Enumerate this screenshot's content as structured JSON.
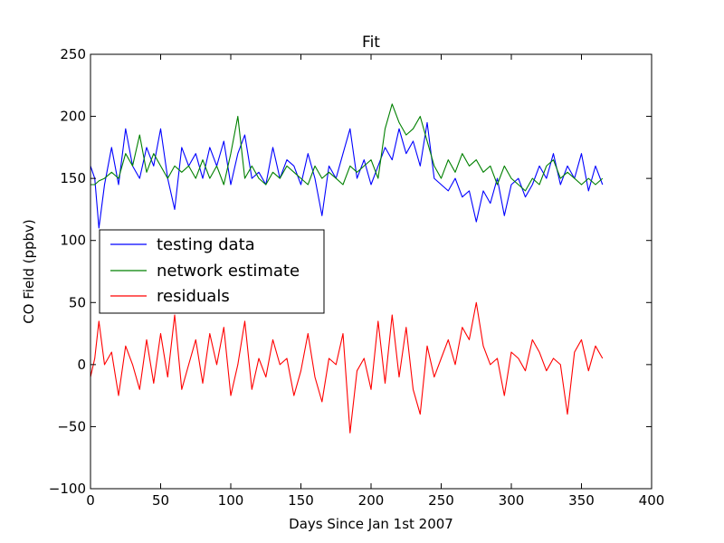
{
  "chart_data": {
    "type": "line",
    "title": "Fit",
    "xlabel": "Days Since Jan 1st 2007",
    "ylabel": "CO Field (ppbv)",
    "xlim": [
      0,
      400
    ],
    "ylim": [
      -100,
      250
    ],
    "xticks": [
      0,
      50,
      100,
      150,
      200,
      250,
      300,
      350,
      400
    ],
    "yticks": [
      -100,
      -50,
      0,
      50,
      100,
      150,
      200,
      250
    ],
    "xtick_labels": [
      "0",
      "50",
      "100",
      "150",
      "200",
      "250",
      "300",
      "350",
      "400"
    ],
    "ytick_labels": [
      "−100",
      "−50",
      "0",
      "50",
      "100",
      "150",
      "200",
      "250"
    ],
    "grid": false,
    "legend_position": "center-left",
    "series": [
      {
        "name": "testing data",
        "color": "#0000ff",
        "x": [
          0,
          3,
          6,
          10,
          15,
          20,
          25,
          30,
          35,
          40,
          45,
          50,
          55,
          60,
          65,
          70,
          75,
          80,
          85,
          90,
          95,
          100,
          105,
          110,
          115,
          120,
          125,
          130,
          135,
          140,
          145,
          150,
          155,
          160,
          165,
          170,
          175,
          180,
          185,
          190,
          195,
          200,
          205,
          210,
          215,
          220,
          225,
          230,
          235,
          240,
          245,
          250,
          255,
          260,
          265,
          270,
          275,
          280,
          285,
          290,
          295,
          300,
          305,
          310,
          315,
          320,
          325,
          330,
          335,
          340,
          345,
          350,
          355,
          360,
          365
        ],
        "values": [
          160,
          150,
          110,
          145,
          175,
          145,
          190,
          160,
          150,
          175,
          160,
          190,
          150,
          125,
          175,
          160,
          170,
          150,
          175,
          160,
          180,
          145,
          170,
          185,
          150,
          155,
          145,
          175,
          150,
          165,
          160,
          145,
          170,
          150,
          120,
          160,
          150,
          170,
          190,
          150,
          165,
          145,
          160,
          175,
          165,
          190,
          170,
          180,
          160,
          195,
          150,
          145,
          140,
          150,
          135,
          140,
          115,
          140,
          130,
          150,
          120,
          145,
          150,
          135,
          145,
          160,
          150,
          170,
          145,
          160,
          150,
          170,
          140,
          160,
          145
        ]
      },
      {
        "name": "network estimate",
        "color": "#008000",
        "x": [
          0,
          3,
          6,
          10,
          15,
          20,
          25,
          30,
          35,
          40,
          45,
          50,
          55,
          60,
          65,
          70,
          75,
          80,
          85,
          90,
          95,
          100,
          105,
          110,
          115,
          120,
          125,
          130,
          135,
          140,
          145,
          150,
          155,
          160,
          165,
          170,
          175,
          180,
          185,
          190,
          195,
          200,
          205,
          210,
          215,
          220,
          225,
          230,
          235,
          240,
          245,
          250,
          255,
          260,
          265,
          270,
          275,
          280,
          285,
          290,
          295,
          300,
          305,
          310,
          315,
          320,
          325,
          330,
          335,
          340,
          345,
          350,
          355,
          360,
          365
        ],
        "values": [
          145,
          145,
          148,
          150,
          155,
          150,
          170,
          160,
          185,
          155,
          170,
          160,
          150,
          160,
          155,
          160,
          150,
          165,
          150,
          160,
          145,
          170,
          200,
          150,
          160,
          150,
          145,
          155,
          150,
          160,
          155,
          150,
          145,
          160,
          150,
          155,
          150,
          145,
          160,
          155,
          160,
          165,
          150,
          190,
          210,
          195,
          185,
          190,
          200,
          180,
          160,
          150,
          165,
          155,
          170,
          160,
          165,
          155,
          160,
          145,
          160,
          150,
          145,
          140,
          150,
          145,
          160,
          165,
          150,
          155,
          150,
          145,
          150,
          145,
          150
        ]
      },
      {
        "name": "residuals",
        "color": "#ff0000",
        "x": [
          0,
          3,
          6,
          10,
          15,
          20,
          25,
          30,
          35,
          40,
          45,
          50,
          55,
          60,
          65,
          70,
          75,
          80,
          85,
          90,
          95,
          100,
          105,
          110,
          115,
          120,
          125,
          130,
          135,
          140,
          145,
          150,
          155,
          160,
          165,
          170,
          175,
          180,
          185,
          190,
          195,
          200,
          205,
          210,
          215,
          220,
          225,
          230,
          235,
          240,
          245,
          250,
          255,
          260,
          265,
          270,
          275,
          280,
          285,
          290,
          295,
          300,
          305,
          310,
          315,
          320,
          325,
          330,
          335,
          340,
          345,
          350,
          355,
          360,
          365
        ],
        "values": [
          -10,
          5,
          35,
          0,
          10,
          -25,
          15,
          0,
          -20,
          20,
          -15,
          25,
          -10,
          40,
          -20,
          0,
          20,
          -15,
          25,
          0,
          30,
          -25,
          0,
          35,
          -20,
          5,
          -10,
          20,
          0,
          5,
          -25,
          -5,
          25,
          -10,
          -30,
          5,
          0,
          25,
          -55,
          -5,
          5,
          -20,
          35,
          -15,
          40,
          -10,
          30,
          -20,
          -40,
          15,
          -10,
          5,
          20,
          0,
          30,
          20,
          50,
          15,
          0,
          5,
          -25,
          10,
          5,
          -5,
          20,
          10,
          -5,
          5,
          0,
          -40,
          10,
          20,
          -5,
          15,
          5
        ]
      }
    ]
  }
}
